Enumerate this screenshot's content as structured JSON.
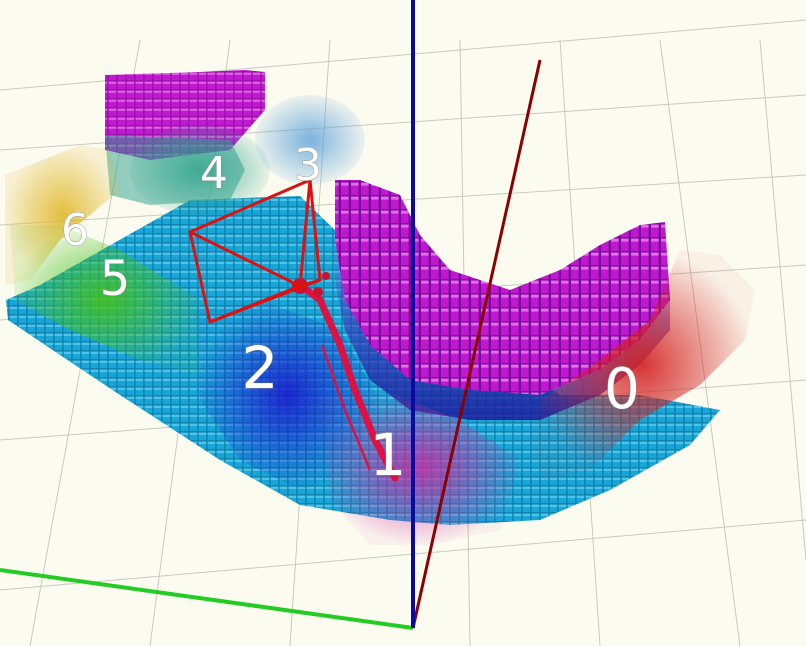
{
  "viewer": {
    "background_color": "#fbfbf0",
    "grid_color": "#c9c9c2",
    "axes": {
      "x_axis_color": "#8b0000",
      "y_axis_color": "#22cc22",
      "z_axis_color": "#0a0aa0"
    },
    "camera_frustum_color": "#dd1111",
    "trajectory_color": "#dd1144"
  },
  "segments": [
    {
      "label": "0",
      "color": "#d21f1f"
    },
    {
      "label": "1",
      "color": "#cc2aa0"
    },
    {
      "label": "2",
      "color": "#1a1acc"
    },
    {
      "label": "3",
      "color": "#5aa0d8"
    },
    {
      "label": "4",
      "color": "#2aa08a"
    },
    {
      "label": "5",
      "color": "#44c01a"
    },
    {
      "label": "6",
      "color": "#e0b82a"
    }
  ],
  "voxel_palette": {
    "floor": "#18a6d8",
    "floor_dark": "#0f7fa8",
    "wall_magenta": "#c01ad0",
    "wall_magenta_light": "#e060e8",
    "wall_blue": "#2a2ab8"
  }
}
